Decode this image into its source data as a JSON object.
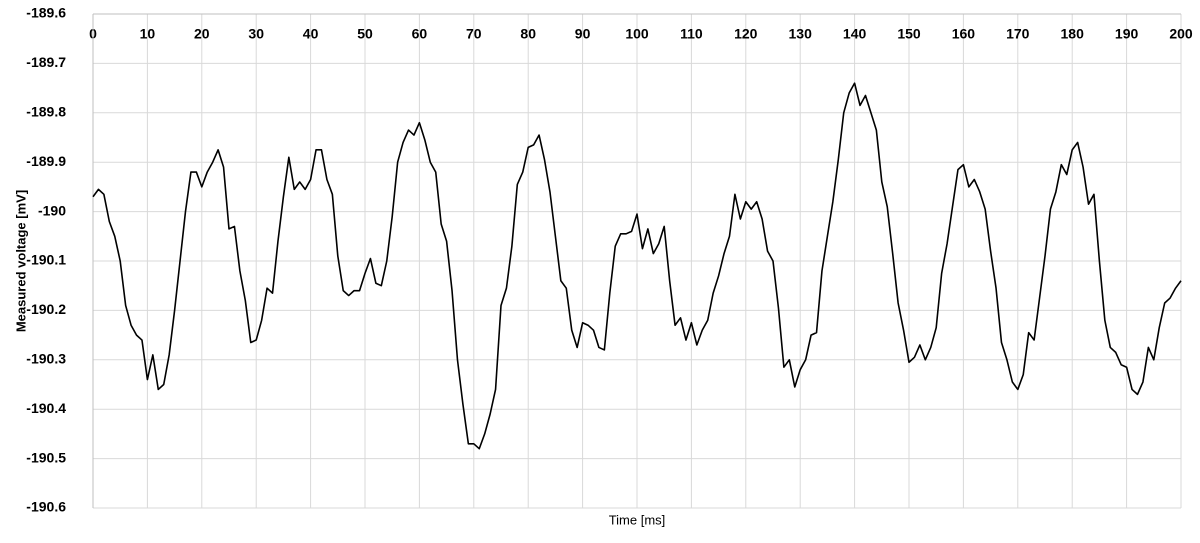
{
  "chart_data": {
    "type": "line",
    "x_label": "Time [ms]",
    "y_label": "Measured voltage [mV]",
    "x": [
      0,
      1,
      2,
      3,
      4,
      5,
      6,
      7,
      8,
      9,
      10,
      11,
      12,
      13,
      14,
      15,
      16,
      17,
      18,
      19,
      20,
      21,
      22,
      23,
      24,
      25,
      26,
      27,
      28,
      29,
      30,
      31,
      32,
      33,
      34,
      35,
      36,
      37,
      38,
      39,
      40,
      41,
      42,
      43,
      44,
      45,
      46,
      47,
      48,
      49,
      50,
      51,
      52,
      53,
      54,
      55,
      56,
      57,
      58,
      59,
      60,
      61,
      62,
      63,
      64,
      65,
      66,
      67,
      68,
      69,
      70,
      71,
      72,
      73,
      74,
      75,
      76,
      77,
      78,
      79,
      80,
      81,
      82,
      83,
      84,
      85,
      86,
      87,
      88,
      89,
      90,
      91,
      92,
      93,
      94,
      95,
      96,
      97,
      98,
      99,
      100,
      101,
      102,
      103,
      104,
      105,
      106,
      107,
      108,
      109,
      110,
      111,
      112,
      113,
      114,
      115,
      116,
      117,
      118,
      119,
      120,
      121,
      122,
      123,
      124,
      125,
      126,
      127,
      128,
      129,
      130,
      131,
      132,
      133,
      134,
      135,
      136,
      137,
      138,
      139,
      140,
      141,
      142,
      143,
      144,
      145,
      146,
      147,
      148,
      149,
      150,
      151,
      152,
      153,
      154,
      155,
      156,
      157,
      158,
      159,
      160,
      161,
      162,
      163,
      164,
      165,
      166,
      167,
      168,
      169,
      170,
      171,
      172,
      173,
      174,
      175,
      176,
      177,
      178,
      179,
      180,
      181,
      182,
      183,
      184,
      185,
      186,
      187,
      188,
      189,
      190,
      191,
      192,
      193,
      194,
      195,
      196,
      197,
      198,
      199,
      200
    ],
    "series": [
      {
        "name": "Measured voltage",
        "color": "#000000",
        "values": [
          -189.97,
          -189.955,
          -189.965,
          -190.02,
          -190.05,
          -190.1,
          -190.19,
          -190.23,
          -190.25,
          -190.26,
          -190.34,
          -190.29,
          -190.36,
          -190.35,
          -190.29,
          -190.2,
          -190.1,
          -190.0,
          -189.92,
          -189.92,
          -189.95,
          -189.92,
          -189.9,
          -189.875,
          -189.91,
          -190.035,
          -190.03,
          -190.12,
          -190.18,
          -190.265,
          -190.26,
          -190.22,
          -190.155,
          -190.165,
          -190.06,
          -189.97,
          -189.89,
          -189.955,
          -189.94,
          -189.955,
          -189.935,
          -189.875,
          -189.875,
          -189.935,
          -189.965,
          -190.09,
          -190.16,
          -190.17,
          -190.16,
          -190.16,
          -190.125,
          -190.095,
          -190.145,
          -190.15,
          -190.1,
          -190.01,
          -189.9,
          -189.86,
          -189.835,
          -189.845,
          -189.82,
          -189.855,
          -189.9,
          -189.92,
          -190.025,
          -190.06,
          -190.16,
          -190.3,
          -190.39,
          -190.47,
          -190.47,
          -190.48,
          -190.45,
          -190.41,
          -190.36,
          -190.19,
          -190.155,
          -190.07,
          -189.945,
          -189.92,
          -189.87,
          -189.865,
          -189.845,
          -189.895,
          -189.96,
          -190.05,
          -190.14,
          -190.155,
          -190.24,
          -190.275,
          -190.225,
          -190.23,
          -190.24,
          -190.275,
          -190.28,
          -190.165,
          -190.07,
          -190.045,
          -190.045,
          -190.04,
          -190.005,
          -190.075,
          -190.035,
          -190.085,
          -190.065,
          -190.03,
          -190.14,
          -190.23,
          -190.215,
          -190.26,
          -190.225,
          -190.27,
          -190.24,
          -190.22,
          -190.165,
          -190.13,
          -190.085,
          -190.05,
          -189.965,
          -190.015,
          -189.98,
          -189.995,
          -189.98,
          -190.015,
          -190.08,
          -190.1,
          -190.195,
          -190.315,
          -190.3,
          -190.355,
          -190.32,
          -190.3,
          -190.25,
          -190.245,
          -190.12,
          -190.05,
          -189.98,
          -189.895,
          -189.8,
          -189.76,
          -189.74,
          -189.785,
          -189.765,
          -189.8,
          -189.835,
          -189.94,
          -189.99,
          -190.085,
          -190.185,
          -190.24,
          -190.305,
          -190.295,
          -190.27,
          -190.3,
          -190.275,
          -190.235,
          -190.125,
          -190.065,
          -189.99,
          -189.915,
          -189.905,
          -189.95,
          -189.935,
          -189.96,
          -189.995,
          -190.08,
          -190.155,
          -190.265,
          -190.3,
          -190.345,
          -190.36,
          -190.33,
          -190.245,
          -190.26,
          -190.175,
          -190.09,
          -189.995,
          -189.96,
          -189.905,
          -189.925,
          -189.875,
          -189.86,
          -189.91,
          -189.985,
          -189.965,
          -190.1,
          -190.22,
          -190.275,
          -190.285,
          -190.31,
          -190.315,
          -190.36,
          -190.37,
          -190.345,
          -190.275,
          -190.3,
          -190.235,
          -190.185,
          -190.175,
          -190.155,
          -190.14
        ]
      }
    ],
    "xlim": [
      0,
      200
    ],
    "xticks": [
      0,
      10,
      20,
      30,
      40,
      50,
      60,
      70,
      80,
      90,
      100,
      110,
      120,
      130,
      140,
      150,
      160,
      170,
      180,
      190,
      200
    ],
    "ylim": [
      -190.6,
      -189.6
    ],
    "yticks": [
      -189.6,
      -189.7,
      -189.8,
      -189.9,
      -190,
      -190.1,
      -190.2,
      -190.3,
      -190.4,
      -190.5,
      -190.6
    ],
    "grid": true
  }
}
